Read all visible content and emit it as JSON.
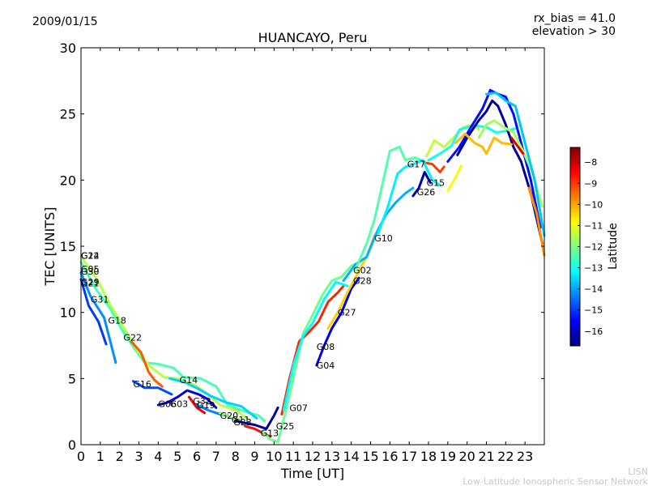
{
  "date_label": "2009/01/15",
  "rx_bias_label": "rx_bias = 41.0",
  "elevation_label": "elevation > 30",
  "footer_top": "LISN",
  "footer_bottom": "Low-Latitude Ionospheric Sensor Network",
  "chart_data": {
    "type": "scatter",
    "title": "HUANCAYO, Peru",
    "xlabel": "Time [UT]",
    "ylabel": "TEC [UNITS]",
    "xlim": [
      0,
      24
    ],
    "ylim": [
      0,
      30
    ],
    "xticks": [
      0,
      1,
      2,
      3,
      4,
      5,
      6,
      7,
      8,
      9,
      10,
      11,
      12,
      13,
      14,
      15,
      16,
      17,
      18,
      19,
      20,
      21,
      22,
      23
    ],
    "yticks": [
      0,
      5,
      10,
      15,
      20,
      25,
      30
    ],
    "grid": false,
    "colorbar": {
      "label": "Latitude",
      "range": [
        -16.7,
        -7.3
      ],
      "ticks": [
        -8,
        -9,
        -10,
        -11,
        -12,
        -13,
        -14,
        -15,
        -16
      ],
      "colors": [
        "#00007f",
        "#0000ff",
        "#007fff",
        "#00ffff",
        "#7fff7f",
        "#ffff00",
        "#ff7f00",
        "#ff0000",
        "#7f0000"
      ]
    },
    "satellite_labels": [
      {
        "text": "G24",
        "x": 0.0,
        "y": 14.3
      },
      {
        "text": "G12",
        "x": 0.0,
        "y": 14.3
      },
      {
        "text": "G05",
        "x": 0.0,
        "y": 13.3
      },
      {
        "text": "G30",
        "x": 0.0,
        "y": 13.1
      },
      {
        "text": "G29",
        "x": 0.0,
        "y": 12.3
      },
      {
        "text": "G21",
        "x": 0.0,
        "y": 12.2
      },
      {
        "text": "G31",
        "x": 0.5,
        "y": 11.0
      },
      {
        "text": "G18",
        "x": 1.4,
        "y": 9.4
      },
      {
        "text": "G22",
        "x": 2.2,
        "y": 8.1
      },
      {
        "text": "G16",
        "x": 2.7,
        "y": 4.6
      },
      {
        "text": "G14",
        "x": 5.1,
        "y": 4.9
      },
      {
        "text": "G06",
        "x": 4.0,
        "y": 3.1
      },
      {
        "text": "G03",
        "x": 4.6,
        "y": 3.1
      },
      {
        "text": "G32",
        "x": 5.8,
        "y": 3.3
      },
      {
        "text": "G19",
        "x": 6.0,
        "y": 3.0
      },
      {
        "text": "G20",
        "x": 7.2,
        "y": 2.2
      },
      {
        "text": "G11",
        "x": 7.8,
        "y": 1.9
      },
      {
        "text": "G23",
        "x": 7.9,
        "y": 1.7
      },
      {
        "text": "G13",
        "x": 9.3,
        "y": 0.9
      },
      {
        "text": "G25",
        "x": 10.1,
        "y": 1.4
      },
      {
        "text": "G07",
        "x": 10.8,
        "y": 2.8
      },
      {
        "text": "G04",
        "x": 12.2,
        "y": 6.0
      },
      {
        "text": "G08",
        "x": 12.2,
        "y": 7.4
      },
      {
        "text": "G27",
        "x": 13.3,
        "y": 10.0
      },
      {
        "text": "G28",
        "x": 14.1,
        "y": 12.4
      },
      {
        "text": "G02",
        "x": 14.1,
        "y": 13.2
      },
      {
        "text": "G10",
        "x": 15.2,
        "y": 15.6
      },
      {
        "text": "G17",
        "x": 16.9,
        "y": 21.2
      },
      {
        "text": "G15",
        "x": 17.9,
        "y": 19.8
      },
      {
        "text": "G26",
        "x": 17.4,
        "y": 19.1
      }
    ],
    "series": [
      {
        "lat": -12.5,
        "points": [
          [
            0,
            13.8
          ],
          [
            0.8,
            11.7
          ],
          [
            1.5,
            10.3
          ],
          [
            2.2,
            8.5
          ],
          [
            2.8,
            7.2
          ],
          [
            3.3,
            6.2
          ],
          [
            4.0,
            6.1
          ],
          [
            4.8,
            5.8
          ],
          [
            5.3,
            5.1
          ],
          [
            6.2,
            5.0
          ],
          [
            7.0,
            4.4
          ],
          [
            7.6,
            3.0
          ],
          [
            8.5,
            2.5
          ],
          [
            9.2,
            2.2
          ],
          [
            9.5,
            1.8
          ]
        ]
      },
      {
        "lat": -11.5,
        "points": [
          [
            0,
            14.2
          ],
          [
            0.8,
            12.6
          ],
          [
            1.5,
            10.6
          ],
          [
            2.2,
            8.9
          ],
          [
            2.8,
            7.4
          ],
          [
            3.5,
            6.0
          ],
          [
            4.3,
            5.1
          ],
          [
            5.0,
            5.0
          ],
          [
            5.8,
            4.6
          ],
          [
            6.5,
            3.9
          ],
          [
            7.2,
            3.0
          ],
          [
            8.0,
            2.6
          ],
          [
            8.6,
            2.0
          ]
        ]
      },
      {
        "lat": -15.0,
        "points": [
          [
            0,
            12.5
          ],
          [
            0.4,
            10.5
          ],
          [
            0.9,
            9.3
          ],
          [
            1.3,
            7.6
          ]
        ]
      },
      {
        "lat": -14.2,
        "points": [
          [
            0,
            13.0
          ],
          [
            0.5,
            11.2
          ],
          [
            1.2,
            9.6
          ],
          [
            1.8,
            6.2
          ]
        ]
      },
      {
        "lat": -9.3,
        "points": [
          [
            2.6,
            7.8
          ],
          [
            3.1,
            7.0
          ],
          [
            3.5,
            5.5
          ],
          [
            3.8,
            4.9
          ],
          [
            4.2,
            4.4
          ]
        ]
      },
      {
        "lat": -14.8,
        "points": [
          [
            2.7,
            4.8
          ],
          [
            3.3,
            4.3
          ],
          [
            4.0,
            4.3
          ],
          [
            4.7,
            3.8
          ]
        ]
      },
      {
        "lat": -13.6,
        "points": [
          [
            4.6,
            5.0
          ],
          [
            5.4,
            4.7
          ],
          [
            6.1,
            4.2
          ],
          [
            6.7,
            3.7
          ],
          [
            7.5,
            3.2
          ],
          [
            8.3,
            2.9
          ],
          [
            9.1,
            2.0
          ]
        ]
      },
      {
        "lat": -15.8,
        "points": [
          [
            4.0,
            3.0
          ],
          [
            4.5,
            3.2
          ],
          [
            5.0,
            3.6
          ],
          [
            5.5,
            4.1
          ],
          [
            6.1,
            3.8
          ],
          [
            6.5,
            3.5
          ],
          [
            7.0,
            2.8
          ]
        ]
      },
      {
        "lat": -8.3,
        "points": [
          [
            5.6,
            3.6
          ],
          [
            6.0,
            2.8
          ],
          [
            6.4,
            2.4
          ]
        ]
      },
      {
        "lat": -14.3,
        "points": [
          [
            6.0,
            3.0
          ],
          [
            6.6,
            2.6
          ],
          [
            7.2,
            2.3
          ],
          [
            7.6,
            2.2
          ]
        ]
      },
      {
        "lat": -11.8,
        "points": [
          [
            7.2,
            2.4
          ],
          [
            7.8,
            2.0
          ],
          [
            8.3,
            1.8
          ]
        ]
      },
      {
        "lat": -16.4,
        "points": [
          [
            8.0,
            1.8
          ],
          [
            8.6,
            1.6
          ],
          [
            9.0,
            1.5
          ],
          [
            9.6,
            1.2
          ],
          [
            10.0,
            2.2
          ],
          [
            10.2,
            2.8
          ]
        ]
      },
      {
        "lat": -8.6,
        "points": [
          [
            8.5,
            1.4
          ],
          [
            9.0,
            1.2
          ],
          [
            9.4,
            0.9
          ],
          [
            9.8,
            0.6
          ]
        ]
      },
      {
        "lat": -12.2,
        "points": [
          [
            9.4,
            1.0
          ],
          [
            9.8,
            0.4
          ],
          [
            10.2,
            0.2
          ],
          [
            10.6,
            2.5
          ],
          [
            11.0,
            5.0
          ],
          [
            11.5,
            8.4
          ],
          [
            12.0,
            9.8
          ],
          [
            12.5,
            11.3
          ],
          [
            13.0,
            12.4
          ],
          [
            13.5,
            12.7
          ],
          [
            14.0,
            13.5
          ],
          [
            14.4,
            13.8
          ]
        ]
      },
      {
        "lat": -8.8,
        "points": [
          [
            10.4,
            2.3
          ],
          [
            10.8,
            5.0
          ],
          [
            11.3,
            7.8
          ],
          [
            11.8,
            8.5
          ],
          [
            12.3,
            9.3
          ],
          [
            12.8,
            10.8
          ],
          [
            13.3,
            11.5
          ],
          [
            13.6,
            12.0
          ]
        ]
      },
      {
        "lat": -13.2,
        "points": [
          [
            10.5,
            2.6
          ],
          [
            11.0,
            6.0
          ],
          [
            11.5,
            8.2
          ],
          [
            12.0,
            9.2
          ],
          [
            12.6,
            11.0
          ],
          [
            13.2,
            12.3
          ],
          [
            13.8,
            12.0
          ]
        ]
      },
      {
        "lat": -15.6,
        "points": [
          [
            12.2,
            6.0
          ],
          [
            12.6,
            7.5
          ],
          [
            13.0,
            8.8
          ],
          [
            13.5,
            10.0
          ],
          [
            14.0,
            11.8
          ],
          [
            14.4,
            12.6
          ]
        ]
      },
      {
        "lat": -10.4,
        "points": [
          [
            12.8,
            8.8
          ],
          [
            13.3,
            10.0
          ],
          [
            13.8,
            11.5
          ],
          [
            14.2,
            12.6
          ],
          [
            14.8,
            14.2
          ],
          [
            15.2,
            15.8
          ]
        ]
      },
      {
        "lat": -13.9,
        "points": [
          [
            13.6,
            12.4
          ],
          [
            14.2,
            13.6
          ],
          [
            14.8,
            14.2
          ],
          [
            15.3,
            16.0
          ],
          [
            15.8,
            17.4
          ],
          [
            16.3,
            18.3
          ],
          [
            16.8,
            19.0
          ],
          [
            17.2,
            19.4
          ]
        ]
      },
      {
        "lat": -12.4,
        "points": [
          [
            14.2,
            13.2
          ],
          [
            14.8,
            15.2
          ],
          [
            15.2,
            17.0
          ],
          [
            15.6,
            19.6
          ],
          [
            16.0,
            22.2
          ],
          [
            16.5,
            22.5
          ],
          [
            16.8,
            21.5
          ],
          [
            17.3,
            21.7
          ],
          [
            17.8,
            21.4
          ]
        ]
      },
      {
        "lat": -13.3,
        "points": [
          [
            15.4,
            16.0
          ],
          [
            15.9,
            18.0
          ],
          [
            16.4,
            20.5
          ],
          [
            16.8,
            21.0
          ],
          [
            17.2,
            21.2
          ],
          [
            17.7,
            21.5
          ],
          [
            18.2,
            20.0
          ],
          [
            18.6,
            19.6
          ]
        ]
      },
      {
        "lat": -16.2,
        "points": [
          [
            17.2,
            18.8
          ],
          [
            17.5,
            19.4
          ],
          [
            17.8,
            20.6
          ],
          [
            18.1,
            19.8
          ]
        ]
      },
      {
        "lat": -9.0,
        "points": [
          [
            17.9,
            21.3
          ],
          [
            18.2,
            21.2
          ],
          [
            18.6,
            20.6
          ],
          [
            18.8,
            21.0
          ]
        ]
      },
      {
        "lat": -11.4,
        "points": [
          [
            17.9,
            21.8
          ],
          [
            18.3,
            23.0
          ],
          [
            18.8,
            22.5
          ],
          [
            19.3,
            23.2
          ],
          [
            19.8,
            24.0
          ],
          [
            20.3,
            24.2
          ],
          [
            20.6,
            23.8
          ]
        ]
      },
      {
        "lat": -13.0,
        "points": [
          [
            18.0,
            21.5
          ],
          [
            18.6,
            22.0
          ],
          [
            19.2,
            22.6
          ],
          [
            19.6,
            23.8
          ],
          [
            20.0,
            24.0
          ],
          [
            20.5,
            24.1
          ],
          [
            21.0,
            24.0
          ],
          [
            21.5,
            23.6
          ],
          [
            22.0,
            23.7
          ],
          [
            22.5,
            23.9
          ]
        ]
      },
      {
        "lat": -15.4,
        "points": [
          [
            19.0,
            21.4
          ],
          [
            19.6,
            22.5
          ],
          [
            20.2,
            24.0
          ],
          [
            20.8,
            25.4
          ],
          [
            21.2,
            26.8
          ],
          [
            21.6,
            26.5
          ],
          [
            22.0,
            26.3
          ],
          [
            22.4,
            25.0
          ],
          [
            22.8,
            22.8
          ],
          [
            23.3,
            20.0
          ],
          [
            23.8,
            16.4
          ]
        ]
      },
      {
        "lat": -16.5,
        "points": [
          [
            19.5,
            21.9
          ],
          [
            20.0,
            23.2
          ],
          [
            20.6,
            24.5
          ],
          [
            21.0,
            25.2
          ],
          [
            21.3,
            26.0
          ],
          [
            21.6,
            25.6
          ],
          [
            22.0,
            24.2
          ],
          [
            22.4,
            22.5
          ],
          [
            22.8,
            21.4
          ],
          [
            23.3,
            19.0
          ],
          [
            23.9,
            15.2
          ]
        ]
      },
      {
        "lat": -10.2,
        "points": [
          [
            19.4,
            22.8
          ],
          [
            19.9,
            23.5
          ],
          [
            20.4,
            22.8
          ],
          [
            20.8,
            22.5
          ],
          [
            21.0,
            22.0
          ],
          [
            21.4,
            23.2
          ],
          [
            21.8,
            22.8
          ],
          [
            22.3,
            22.7
          ]
        ]
      },
      {
        "lat": -11.7,
        "points": [
          [
            20.6,
            23.2
          ],
          [
            21.0,
            24.2
          ],
          [
            21.4,
            24.5
          ],
          [
            21.9,
            24.0
          ],
          [
            22.4,
            23.6
          ],
          [
            22.9,
            22.2
          ],
          [
            23.4,
            20.5
          ],
          [
            23.9,
            18.0
          ]
        ]
      },
      {
        "lat": -13.7,
        "points": [
          [
            21.0,
            26.5
          ],
          [
            21.5,
            26.6
          ],
          [
            22.0,
            26.0
          ],
          [
            22.5,
            25.6
          ],
          [
            23.0,
            22.8
          ],
          [
            23.5,
            20.0
          ],
          [
            24.0,
            15.8
          ]
        ]
      },
      {
        "lat": -8.2,
        "points": [
          [
            22.3,
            23.2
          ],
          [
            22.6,
            22.6
          ],
          [
            22.9,
            22.0
          ]
        ]
      },
      {
        "lat": -9.8,
        "points": [
          [
            23.2,
            19.4
          ],
          [
            23.6,
            17.5
          ],
          [
            24.0,
            14.3
          ]
        ]
      },
      {
        "lat": -10.9,
        "points": [
          [
            19.0,
            19.2
          ],
          [
            19.4,
            20.2
          ],
          [
            19.7,
            21.1
          ]
        ]
      }
    ]
  }
}
